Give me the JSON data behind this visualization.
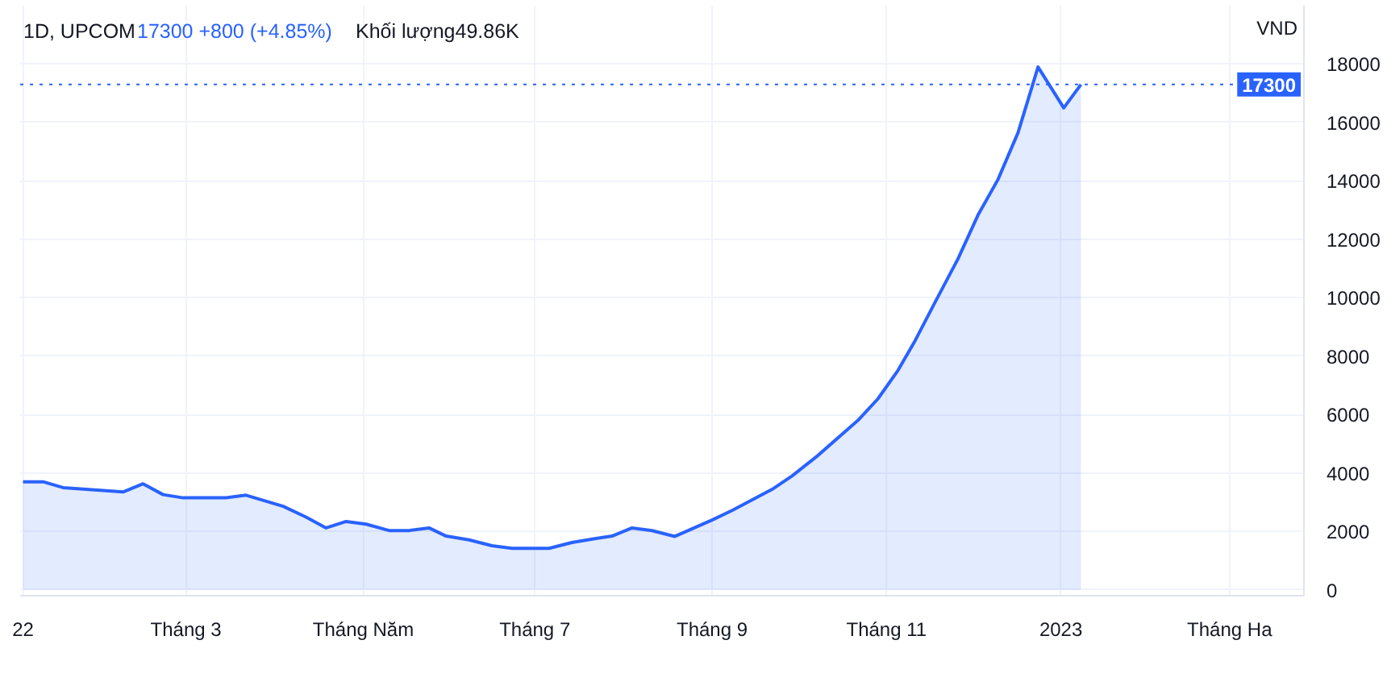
{
  "chart_data": {
    "type": "area",
    "title": "1D, UPCOM",
    "ylabel": "VND",
    "annotations": [
      "17300 +800 (+4.85%)",
      "Khối lượng49.86K"
    ],
    "x": [
      "2022-01-03",
      "2022-01-10",
      "2022-01-17",
      "2022-02-07",
      "2022-02-14",
      "2022-02-21",
      "2022-02-28",
      "2022-03-15",
      "2022-03-22",
      "2022-04-04",
      "2022-04-12",
      "2022-04-19",
      "2022-04-26",
      "2022-05-03",
      "2022-05-11",
      "2022-05-18",
      "2022-05-25",
      "2022-05-31",
      "2022-06-08",
      "2022-06-16",
      "2022-06-23",
      "2022-07-06",
      "2022-07-14",
      "2022-07-22",
      "2022-07-28",
      "2022-08-04",
      "2022-08-11",
      "2022-08-19",
      "2022-09-01",
      "2022-09-08",
      "2022-09-22",
      "2022-09-29",
      "2022-10-08",
      "2022-10-22",
      "2022-10-29",
      "2022-11-05",
      "2022-11-11",
      "2022-11-18",
      "2022-11-26",
      "2022-12-03",
      "2022-12-10",
      "2022-12-17",
      "2022-12-24",
      "2023-01-02",
      "2023-01-08"
    ],
    "series": [
      {
        "color": "#2962ff",
        "values": [
          3700,
          3700,
          3500,
          3350,
          3630,
          3260,
          3150,
          3150,
          3240,
          2860,
          2490,
          2120,
          2340,
          2250,
          2030,
          2030,
          2120,
          1840,
          1710,
          1510,
          1420,
          1420,
          1620,
          1750,
          1840,
          2120,
          2030,
          1830,
          2390,
          2720,
          3440,
          3900,
          4600,
          5800,
          6540,
          7510,
          8530,
          9850,
          11330,
          12830,
          14050,
          15650,
          17900,
          16500,
          17300
        ]
      }
    ],
    "xlim": [
      "2022-01-02",
      "2023-03-27"
    ],
    "ylim": [
      -200,
      20000
    ],
    "xticks": [
      {
        "value": "2022-01-03",
        "label": "22"
      },
      {
        "value": "2022-03-01",
        "label": "Tháng 3"
      },
      {
        "value": "2022-05-02",
        "label": "Tháng Năm"
      },
      {
        "value": "2022-07-01",
        "label": "Tháng 7"
      },
      {
        "value": "2022-09-01",
        "label": "Tháng 9"
      },
      {
        "value": "2022-11-01",
        "label": "Tháng 11"
      },
      {
        "value": "2023-01-01",
        "label": "2023"
      },
      {
        "value": "2023-03-01",
        "label": "Tháng Ha"
      }
    ],
    "yticks": [
      0,
      2000,
      4000,
      6000,
      8000,
      10000,
      12000,
      14000,
      16000,
      18000
    ],
    "grid": true,
    "ref_lines": [
      {
        "axis": "y",
        "value": 17300,
        "label": "17300",
        "color": "#2962ff",
        "line_style": "dotted"
      }
    ]
  }
}
